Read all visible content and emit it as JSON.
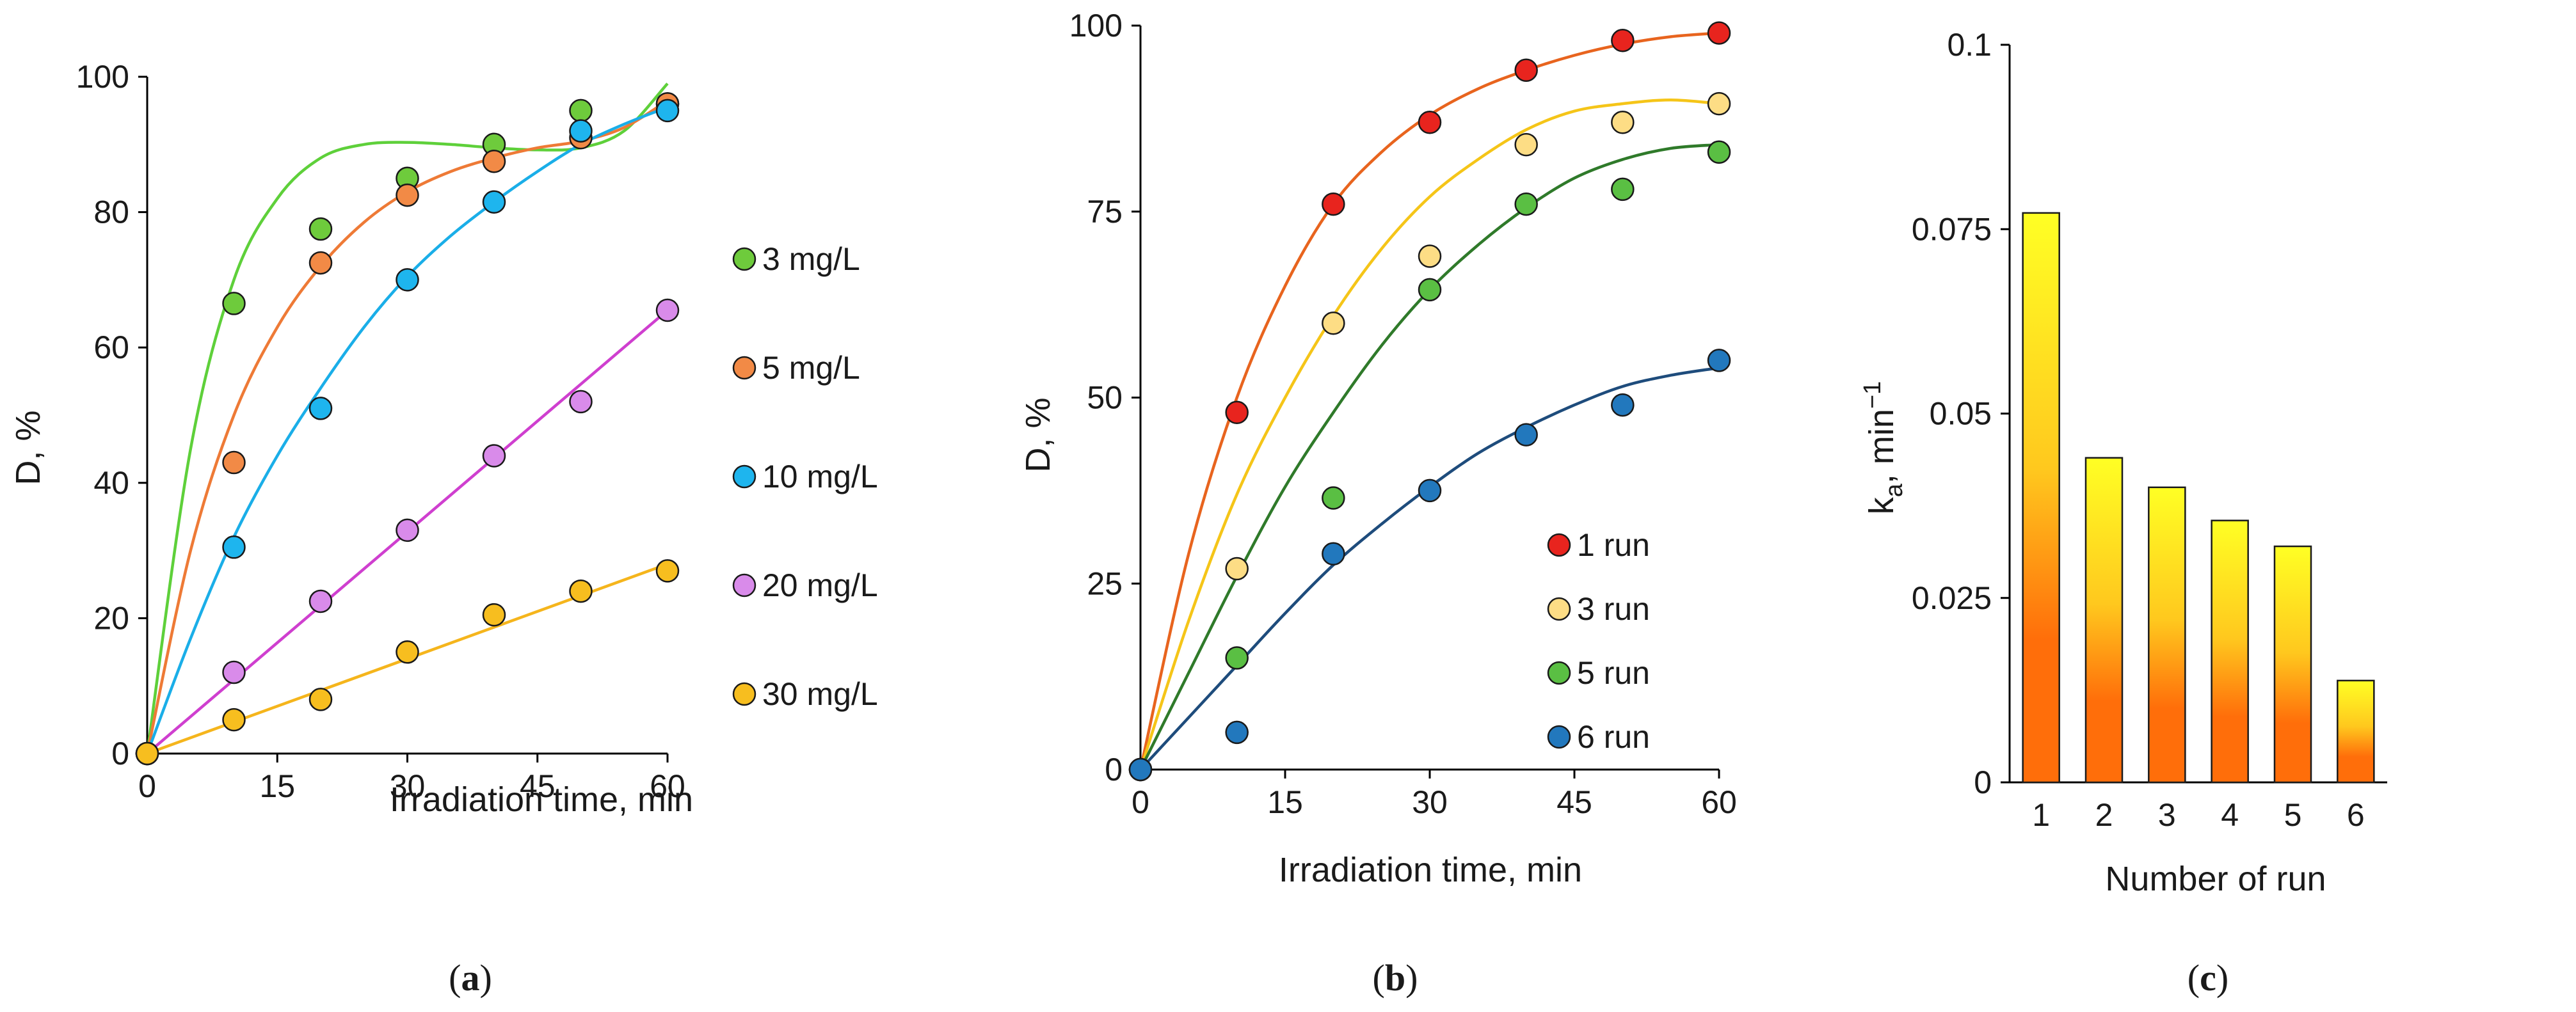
{
  "chart_data": [
    {
      "panel": "a",
      "type": "scatter",
      "panel_label": "a",
      "xlabel": "Irradiation time, min",
      "ylabel": "D, %",
      "xlim": [
        0,
        60
      ],
      "ylim": [
        0,
        100
      ],
      "xticks": [
        "0",
        "15",
        "30",
        "45",
        "60"
      ],
      "yticks": [
        "0",
        "20",
        "40",
        "60",
        "80",
        "100"
      ],
      "legend_position": "right",
      "series": [
        {
          "name": "3 mg/L",
          "color": "#6ECB3C",
          "line": "#5ED03A",
          "x": [
            0,
            10,
            20,
            30,
            40,
            50,
            60
          ],
          "y": [
            0,
            66.5,
            77.5,
            85,
            90,
            95,
            96
          ],
          "fit_x": [
            0,
            5,
            10,
            15,
            20,
            25,
            30,
            35,
            40,
            45,
            50,
            55,
            60
          ],
          "fit_y": [
            0,
            45,
            70,
            82,
            88,
            90,
            90.3,
            90,
            89.5,
            89.2,
            89.5,
            92,
            99
          ]
        },
        {
          "name": "5 mg/L",
          "color": "#F28A46",
          "line": "#EE7A36",
          "x": [
            0,
            10,
            20,
            30,
            40,
            50,
            60
          ],
          "y": [
            0,
            43,
            72.5,
            82.5,
            87.5,
            91,
            96
          ],
          "fit_x": [
            0,
            5,
            10,
            15,
            20,
            25,
            30,
            35,
            40,
            45,
            50,
            55,
            60
          ],
          "fit_y": [
            0,
            30,
            50,
            63,
            72,
            78.5,
            83,
            86,
            88,
            89.5,
            90.5,
            92.5,
            96.5
          ]
        },
        {
          "name": "10 mg/L",
          "color": "#1EB5EE",
          "line": "#1AAEE8",
          "x": [
            0,
            10,
            20,
            30,
            40,
            50,
            60
          ],
          "y": [
            0,
            30.5,
            51,
            70,
            81.5,
            92,
            95
          ],
          "fit_x": [
            0,
            5,
            10,
            15,
            20,
            25,
            30,
            35,
            40,
            45,
            50,
            55,
            60
          ],
          "fit_y": [
            0,
            17,
            32,
            44,
            54,
            63,
            70.5,
            76.5,
            81.5,
            86,
            90,
            93,
            95.5
          ]
        },
        {
          "name": "20 mg/L",
          "color": "#D98BEA",
          "line": "#CF3FCF",
          "x": [
            0,
            10,
            20,
            30,
            40,
            50,
            60
          ],
          "y": [
            0,
            12,
            22.5,
            33,
            44,
            52,
            65.5
          ],
          "fit_x": [
            0,
            60
          ],
          "fit_y": [
            0,
            65.5
          ]
        },
        {
          "name": "30 mg/L",
          "color": "#F7BE1F",
          "line": "#F5B51C",
          "x": [
            0,
            10,
            20,
            30,
            40,
            50,
            60
          ],
          "y": [
            0,
            5,
            8,
            15,
            20.5,
            24,
            27
          ],
          "fit_x": [
            0,
            60
          ],
          "fit_y": [
            0,
            28
          ]
        }
      ]
    },
    {
      "panel": "b",
      "type": "scatter",
      "panel_label": "b",
      "xlabel": "Irradiation time, min",
      "ylabel": "D, %",
      "xlim": [
        0,
        60
      ],
      "ylim": [
        0,
        100
      ],
      "xticks": [
        "0",
        "15",
        "30",
        "45",
        "60"
      ],
      "yticks": [
        "0",
        "25",
        "50",
        "75",
        "100"
      ],
      "legend_position": "bottom-right",
      "series": [
        {
          "name": "1 run",
          "color": "#E8241E",
          "line": "#E8641E",
          "x": [
            0,
            10,
            20,
            30,
            40,
            50,
            60
          ],
          "y": [
            0,
            48,
            76,
            87,
            94,
            98,
            99
          ],
          "fit_x": [
            0,
            5,
            10,
            15,
            20,
            25,
            30,
            35,
            40,
            45,
            50,
            55,
            60
          ],
          "fit_y": [
            0,
            29,
            50,
            65,
            76,
            83,
            88,
            91.5,
            94,
            96,
            97.5,
            98.5,
            99
          ]
        },
        {
          "name": "3 run",
          "color": "#FDDD85",
          "line": "#F5C518",
          "x": [
            0,
            10,
            20,
            30,
            40,
            50,
            60
          ],
          "y": [
            0,
            27,
            60,
            69,
            84,
            87,
            89.5
          ],
          "fit_x": [
            0,
            5,
            10,
            15,
            20,
            25,
            30,
            35,
            40,
            45,
            50,
            55,
            60
          ],
          "fit_y": [
            0,
            20,
            37,
            50,
            61,
            70,
            77,
            82,
            86,
            88.5,
            89.5,
            90,
            89.5
          ]
        },
        {
          "name": " 5 run",
          "color": "#5ABF43",
          "line": "#2F7A2A",
          "x": [
            0,
            10,
            20,
            30,
            40,
            50,
            60
          ],
          "y": [
            0,
            15,
            36.5,
            64.5,
            76,
            78,
            83
          ],
          "fit_x": [
            0,
            5,
            10,
            15,
            20,
            25,
            30,
            35,
            40,
            45,
            50,
            55,
            60
          ],
          "fit_y": [
            0,
            13,
            26,
            38,
            48,
            57,
            64.5,
            70.5,
            75.5,
            79.5,
            82,
            83.5,
            84
          ]
        },
        {
          "name": "6 run",
          "color": "#2278BD",
          "line": "#1E4C7C",
          "x": [
            0,
            10,
            20,
            30,
            40,
            50,
            60
          ],
          "y": [
            0,
            5,
            29,
            37.5,
            45,
            49,
            55
          ],
          "fit_x": [
            0,
            5,
            10,
            15,
            20,
            25,
            30,
            35,
            40,
            45,
            50,
            55,
            60
          ],
          "fit_y": [
            0,
            7,
            14,
            21,
            27.5,
            33,
            38,
            42.5,
            46,
            49,
            51.5,
            53,
            54
          ]
        }
      ]
    },
    {
      "panel": "c",
      "type": "bar",
      "panel_label": "c",
      "xlabel": "Number of run",
      "ylabel_main": "k",
      "ylabel_sub": "a",
      "ylabel_rest": ", min",
      "ylabel_sup": "−1",
      "ylim": [
        0,
        0.1
      ],
      "yticks": [
        "0",
        "0.025",
        "0.05",
        "0.075",
        "0.1"
      ],
      "categories": [
        "1",
        "2",
        "3",
        "4",
        "5",
        "6"
      ],
      "values": [
        0.0772,
        0.044,
        0.04,
        0.0355,
        0.032,
        0.0138
      ],
      "bar_gradient": [
        "#FFFF24",
        "#FFC81E",
        "#FF6E0A"
      ]
    }
  ]
}
